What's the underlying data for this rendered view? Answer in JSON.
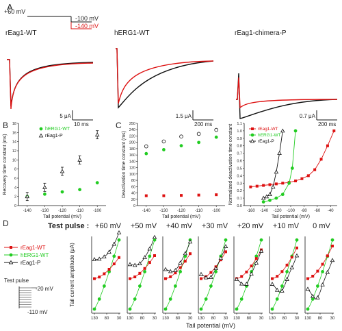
{
  "panels": {
    "A": "A",
    "B": "B",
    "C": "C",
    "D": "D"
  },
  "colors": {
    "black": "#111111",
    "red": "#dd1111",
    "green": "#22cc22"
  },
  "protocol": {
    "v1": "+60 mV",
    "v2": "-100 mV",
    "v3": "-140 mV"
  },
  "traces": [
    {
      "label": "rEag1-WT",
      "scale": "5 μA",
      "time": "10 ms"
    },
    {
      "label": "hERG1-WT",
      "scale": "1.5 μA",
      "time": "200 ms"
    },
    {
      "label": "rEag1-chimera-P",
      "scale": "0.7 μA",
      "time": "200 ms"
    }
  ],
  "panel_B": {
    "legend": [
      "hERG1-WT",
      "rEag1-P"
    ],
    "ylabel": "Recovery time constant (ms)",
    "xlabel": "Tail potential (mV)",
    "yticks": [
      "0",
      "2",
      "4",
      "6",
      "8",
      "10",
      "12",
      "14",
      "16",
      "18"
    ],
    "xticks": [
      "-140",
      "-130",
      "-120",
      "-110",
      "-100"
    ]
  },
  "panel_C1": {
    "ylabel": "Deactivation time constant (ms)",
    "xlabel": "Tail potential (mV)",
    "yticks": [
      "0",
      "20",
      "40",
      "60",
      "80",
      "100",
      "120",
      "140",
      "160",
      "180",
      "200",
      "220",
      "240",
      "250"
    ],
    "xticks": [
      "-140",
      "-130",
      "-120",
      "-110",
      "-100"
    ]
  },
  "panel_C2": {
    "legend": [
      "rEag1-WT",
      "hERG1-WT",
      "rEag1-P"
    ],
    "ylabel": "Normalized deactivation time constant",
    "xlabel": "Tail potential (mV)",
    "yticks": [
      "0.0",
      "0.1",
      "0.2",
      "0.3",
      "0.4",
      "0.5",
      "0.6",
      "0.7",
      "0.8",
      "0.9",
      "1.0",
      "1.1"
    ],
    "xticks": [
      "-160",
      "-140",
      "-120",
      "-100",
      "-80",
      "-60",
      "-40"
    ]
  },
  "panel_D": {
    "test_pulse_label": "Test pulse :",
    "pulses": [
      "+60 mV",
      "+50 mV",
      "+40 mV",
      "+30 mV",
      "+20 mV",
      "+10 mV",
      "0 mV"
    ],
    "legend": [
      "rEag1-WT",
      "hERG1-WT",
      "rEag1-P"
    ],
    "inset_title": "Test pulse",
    "inset_v1": "-20 mV",
    "inset_v2": "-110 mV",
    "ylabel": "Tail current amplitude (μA)",
    "xlabel": "Tail potential (mV)",
    "xticks": [
      "130",
      "80",
      "30"
    ]
  },
  "chart_data": [
    {
      "type": "scatter",
      "xlabel": "Tail potential (mV)",
      "ylabel": "Recovery time constant (ms)",
      "x": [
        -140,
        -130,
        -120,
        -110,
        -100
      ],
      "ylim": [
        0,
        18
      ],
      "series": [
        {
          "name": "hERG1-WT",
          "values": [
            2.0,
            2.5,
            3.0,
            3.5,
            5.0
          ]
        },
        {
          "name": "rEag1-P",
          "values": [
            2.0,
            4.0,
            7.5,
            10.0,
            15.5
          ]
        }
      ]
    },
    {
      "type": "scatter",
      "xlabel": "Tail potential (mV)",
      "ylabel": "Deactivation time constant (ms)",
      "x": [
        -140,
        -130,
        -120,
        -110,
        -100
      ],
      "ylim": [
        0,
        250
      ],
      "series": [
        {
          "values": [
            30,
            30,
            31,
            32,
            33
          ]
        },
        {
          "values": [
            158,
            170,
            182,
            192,
            208
          ]
        },
        {
          "values": [
            180,
            195,
            210,
            218,
            230
          ]
        }
      ]
    },
    {
      "type": "line",
      "xlabel": "Tail potential (mV)",
      "ylabel": "Normalized deactivation time constant",
      "ylim": [
        0,
        1.1
      ],
      "series": [
        {
          "name": "rEag1-WT",
          "x": [
            -160,
            -150,
            -140,
            -130,
            -120,
            -110,
            -100,
            -90,
            -80,
            -70,
            -60,
            -50,
            -40,
            -30
          ],
          "values": [
            0.25,
            0.26,
            0.27,
            0.28,
            0.29,
            0.3,
            0.31,
            0.33,
            0.36,
            0.4,
            0.48,
            0.62,
            0.8,
            1.0
          ]
        },
        {
          "name": "hERG1-WT",
          "x": [
            -140,
            -130,
            -120,
            -110,
            -100,
            -95,
            -90
          ],
          "values": [
            0.05,
            0.07,
            0.1,
            0.15,
            0.3,
            0.5,
            1.0
          ]
        },
        {
          "name": "rEag1-P",
          "x": [
            -140,
            -135,
            -130,
            -125,
            -120,
            -115,
            -110
          ],
          "values": [
            0.1,
            0.12,
            0.15,
            0.25,
            0.45,
            0.7,
            1.0
          ]
        }
      ]
    }
  ]
}
